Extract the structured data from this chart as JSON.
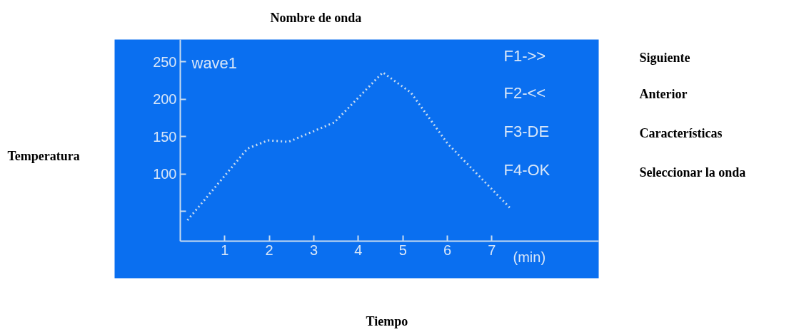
{
  "chart_data": {
    "type": "line",
    "title": "wave1",
    "xlabel": "(min)",
    "x": [
      0.16,
      1.51,
      1.97,
      2.43,
      3.46,
      4.55,
      5.18,
      6.0,
      7.4
    ],
    "series": [
      {
        "color": "#c8dcf0",
        "values": [
          38,
          134,
          145,
          143,
          169,
          236,
          209,
          141,
          55
        ]
      }
    ],
    "xlim": [
      0,
      9.4
    ],
    "ylim": [
      10,
      280
    ],
    "xticks": [
      1,
      2,
      3,
      4,
      5,
      6,
      7
    ],
    "yticks": [
      {
        "value": 50,
        "label": null
      },
      100,
      150,
      200,
      250
    ],
    "grid": false,
    "marker": "none",
    "line_style": "dotted",
    "annotations": [
      "F1->>",
      "F2-<<",
      "F3-DE",
      "F4-OK",
      "Nombre de onda",
      "Siguiente",
      "Anterior",
      "Características",
      "Seleccionar la onda",
      "Temperatura",
      "Tiempo"
    ]
  }
}
